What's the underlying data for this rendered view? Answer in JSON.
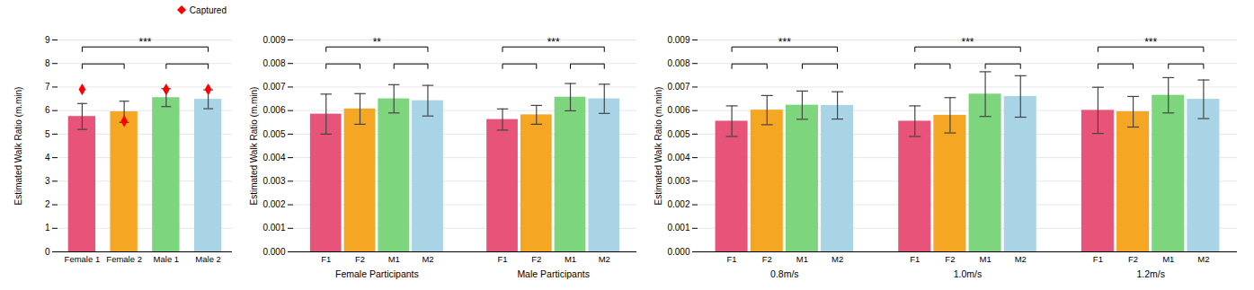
{
  "chart_data": [
    {
      "type": "bar",
      "categories": [
        "Female 1",
        "Female 2",
        "Male 1",
        "Male 2"
      ],
      "values": [
        5.75,
        5.95,
        6.55,
        6.48
      ],
      "colors": [
        "#E8537A",
        "#F5A623",
        "#7DD67D",
        "#A8D4E6"
      ],
      "yerr": [
        0.55,
        0.45,
        0.38,
        0.4
      ],
      "series": [
        {
          "name": "Captured",
          "type": "scatter",
          "marker": "diamond",
          "color": "red",
          "values": [
            6.9,
            5.55,
            6.9,
            6.9
          ]
        }
      ],
      "legend": "upper right",
      "significance": [
        {
          "from": "Female 1",
          "to": "Female 2"
        },
        {
          "from": "Male 1",
          "to": "Male 2"
        },
        {
          "from": "Female 1",
          "to": "Male 2",
          "label": "***"
        }
      ],
      "ylim": [
        0,
        9
      ],
      "yticks": [
        0,
        1,
        2,
        3,
        4,
        5,
        6,
        7,
        8,
        9
      ],
      "ylabel": "Estimated Walk Ratio (m.min)",
      "grid": true
    },
    {
      "type": "bar",
      "groups": [
        {
          "label": "Female Participants",
          "categories": [
            "F1",
            "F2",
            "M1",
            "M2"
          ],
          "values": [
            0.00585,
            0.00607,
            0.0065,
            0.00642
          ],
          "colors": [
            "#E8537A",
            "#F5A623",
            "#7DD67D",
            "#A8D4E6"
          ],
          "yerr": [
            0.00085,
            0.00065,
            0.0006,
            0.00065
          ],
          "significance": [
            {
              "from": "F1",
              "to": "F2"
            },
            {
              "from": "M1",
              "to": "M2"
            },
            {
              "from": "F1",
              "to": "M2",
              "label": "**"
            }
          ]
        },
        {
          "label": "Male Participants",
          "categories": [
            "F1",
            "F2",
            "M1",
            "M2"
          ],
          "values": [
            0.00562,
            0.00582,
            0.00657,
            0.0065
          ],
          "colors": [
            "#E8537A",
            "#F5A623",
            "#7DD67D",
            "#A8D4E6"
          ],
          "yerr": [
            0.00045,
            0.0004,
            0.00058,
            0.00062
          ],
          "significance": [
            {
              "from": "F1",
              "to": "F2"
            },
            {
              "from": "M1",
              "to": "M2"
            },
            {
              "from": "F1",
              "to": "M2",
              "label": "***"
            }
          ]
        }
      ],
      "ylim": [
        0,
        0.009
      ],
      "yticks": [
        {
          "value": 0,
          "label": "0.000"
        },
        0.001,
        0.002,
        0.003,
        0.004,
        0.005,
        0.006,
        0.007,
        0.008,
        0.009
      ],
      "ylabel": "Estimated Walk Ratio (m.min)",
      "grid": true
    },
    {
      "type": "bar",
      "groups": [
        {
          "label": "0.8m/s",
          "categories": [
            "F1",
            "F2",
            "M1",
            "M2"
          ],
          "values": [
            0.00555,
            0.00602,
            0.00623,
            0.00622
          ],
          "colors": [
            "#E8537A",
            "#F5A623",
            "#7DD67D",
            "#A8D4E6"
          ],
          "yerr": [
            0.00065,
            0.00062,
            0.0006,
            0.00058
          ],
          "significance": [
            {
              "from": "F1",
              "to": "F2"
            },
            {
              "from": "M1",
              "to": "M2"
            },
            {
              "from": "F1",
              "to": "M2",
              "label": "***"
            }
          ]
        },
        {
          "label": "1.0m/s",
          "categories": [
            "F1",
            "F2",
            "M1",
            "M2"
          ],
          "values": [
            0.00555,
            0.0058,
            0.0067,
            0.0066
          ],
          "colors": [
            "#E8537A",
            "#F5A623",
            "#7DD67D",
            "#A8D4E6"
          ],
          "yerr": [
            0.00065,
            0.00075,
            0.00095,
            0.00088
          ],
          "significance": [
            {
              "from": "F1",
              "to": "F2"
            },
            {
              "from": "M1",
              "to": "M2"
            },
            {
              "from": "F1",
              "to": "M2",
              "label": "***"
            }
          ]
        },
        {
          "label": "1.2m/s",
          "categories": [
            "F1",
            "F2",
            "M1",
            "M2"
          ],
          "values": [
            0.00601,
            0.00595,
            0.00665,
            0.00648
          ],
          "colors": [
            "#E8537A",
            "#F5A623",
            "#7DD67D",
            "#A8D4E6"
          ],
          "yerr": [
            0.00098,
            0.00065,
            0.00075,
            0.00082
          ],
          "significance": [
            {
              "from": "F1",
              "to": "F2"
            },
            {
              "from": "M1",
              "to": "M2"
            },
            {
              "from": "F1",
              "to": "M2",
              "label": "***"
            }
          ]
        }
      ],
      "ylim": [
        0,
        0.009
      ],
      "yticks": [
        {
          "value": 0,
          "label": "0.000"
        },
        0.001,
        0.002,
        0.003,
        0.004,
        0.005,
        0.006,
        0.007,
        0.008,
        0.009
      ],
      "ylabel": "Estimated Walk Ratio (m.min)",
      "grid": true
    }
  ]
}
